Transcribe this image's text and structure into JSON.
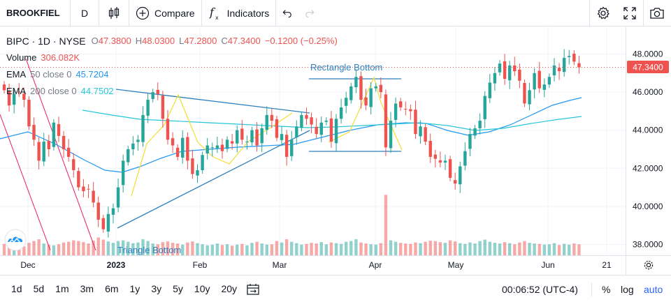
{
  "toolbar": {
    "symbol": "BROOKFIEL",
    "interval": "D",
    "compare_label": "Compare",
    "indicators_label": "Indicators"
  },
  "legend": {
    "title": "BIPC · 1D · NYSE",
    "open_key": "O",
    "open": "47.3800",
    "high_key": "H",
    "high": "48.0300",
    "low_key": "L",
    "low": "47.2800",
    "close_key": "C",
    "close": "47.3400",
    "change": "−0.1200 (−0.25%)",
    "volume_label": "Volume",
    "volume_value": "306.082K",
    "ema50_label": "EMA",
    "ema50_params": "50 close 0",
    "ema50_value": "45.7204",
    "ema200_label": "EMA",
    "ema200_params": "200 close 0",
    "ema200_value": "44.7502"
  },
  "bottom": {
    "ranges": [
      "1d",
      "5d",
      "1m",
      "3m",
      "6m",
      "1y",
      "3y",
      "5y",
      "10y",
      "20y"
    ],
    "time": "00:06:52 (UTC-4)",
    "percent": "%",
    "log": "log",
    "auto": "auto"
  },
  "colors": {
    "up": "#26a69a",
    "down": "#ef5350",
    "ema50": "#2196f3",
    "ema200": "#26c6da",
    "drawing": "#2962ff",
    "pattern": "#f5dc32",
    "fib": "#e91e63",
    "price_tag": "#ef5350",
    "accent": "#2962ff"
  },
  "chart_data": {
    "type": "candlestick",
    "symbol": "BIPC",
    "interval": "1D",
    "exchange": "NYSE",
    "last_price": "47.3400",
    "y_ticks": [
      "48.0000",
      "46.0000",
      "44.0000",
      "42.0000",
      "40.0000",
      "38.0000"
    ],
    "ylim": [
      37.7,
      49.0
    ],
    "x_ticks": [
      "Dec",
      "2023",
      "Feb",
      "Mar",
      "Apr",
      "May",
      "Jun",
      "21"
    ],
    "annotations": [
      "Rectangle Bottom",
      "Triangle Bottom"
    ],
    "closes": [
      46.1,
      45.3,
      45.9,
      46.0,
      45.6,
      44.2,
      43.5,
      42.4,
      43.4,
      43.0,
      44.4,
      43.7,
      43.0,
      42.6,
      41.9,
      41.0,
      40.8,
      40.9,
      40.2,
      39.3,
      38.8,
      39.6,
      39.9,
      41.0,
      42.4,
      43.0,
      43.3,
      43.5,
      44.8,
      45.6,
      46.0,
      45.9,
      44.6,
      43.5,
      43.2,
      42.6,
      43.6,
      42.4,
      41.7,
      41.9,
      42.7,
      43.2,
      43.1,
      43.2,
      42.9,
      43.5,
      43.3,
      44.0,
      43.5,
      43.4,
      44.0,
      43.2,
      44.1,
      44.8,
      44.5,
      43.6,
      43.8,
      42.6,
      43.5,
      44.2,
      44.8,
      44.6,
      44.3,
      43.8,
      44.4,
      44.5,
      43.4,
      44.6,
      45.2,
      45.7,
      46.3,
      46.8,
      45.6,
      45.3,
      46.2,
      46.3,
      46.0,
      43.1,
      44.5,
      45.4,
      45.2,
      45.1,
      45.0,
      43.8,
      44.2,
      43.4,
      42.6,
      42.5,
      42.3,
      42.4,
      41.5,
      41.2,
      42.1,
      42.9,
      43.8,
      44.1,
      44.5,
      45.8,
      46.5,
      47.0,
      47.5,
      46.7,
      47.4,
      47.1,
      46.6,
      45.4,
      46.1,
      47.0,
      46.2,
      46.4,
      46.8,
      47.4,
      47.1,
      47.8,
      47.9,
      47.6,
      47.3
    ],
    "volume": [
      0.32,
      0.28,
      0.3,
      0.26,
      0.25,
      0.35,
      0.4,
      0.45,
      0.33,
      0.3,
      0.28,
      0.31,
      0.36,
      0.38,
      0.42,
      0.4,
      0.37,
      0.33,
      0.41,
      0.5,
      0.44,
      0.39,
      0.35,
      0.4,
      0.42,
      0.38,
      0.34,
      0.36,
      0.45,
      0.4,
      0.33,
      0.31,
      0.37,
      0.39,
      0.35,
      0.33,
      0.3,
      0.36,
      0.39,
      0.34,
      0.31,
      0.28,
      0.3,
      0.33,
      0.29,
      0.31,
      0.27,
      0.3,
      0.32,
      0.28,
      0.35,
      0.38,
      0.33,
      0.3,
      0.31,
      0.4,
      0.36,
      0.45,
      0.38,
      0.34,
      0.3,
      0.32,
      0.35,
      0.33,
      0.37,
      0.31,
      0.36,
      0.34,
      0.32,
      0.38,
      0.4,
      0.45,
      0.36,
      0.33,
      0.31,
      0.3,
      0.34,
      1.7,
      0.42,
      0.38,
      0.35,
      0.33,
      0.32,
      0.36,
      0.34,
      0.38,
      0.41,
      0.4,
      0.37,
      0.35,
      0.42,
      0.39,
      0.34,
      0.32,
      0.36,
      0.33,
      0.4,
      0.44,
      0.38,
      0.35,
      0.33,
      0.37,
      0.34,
      0.31,
      0.36,
      0.4,
      0.35,
      0.33,
      0.32,
      0.3,
      0.31,
      0.34,
      0.29,
      0.32,
      0.3,
      0.33,
      0.31
    ]
  }
}
